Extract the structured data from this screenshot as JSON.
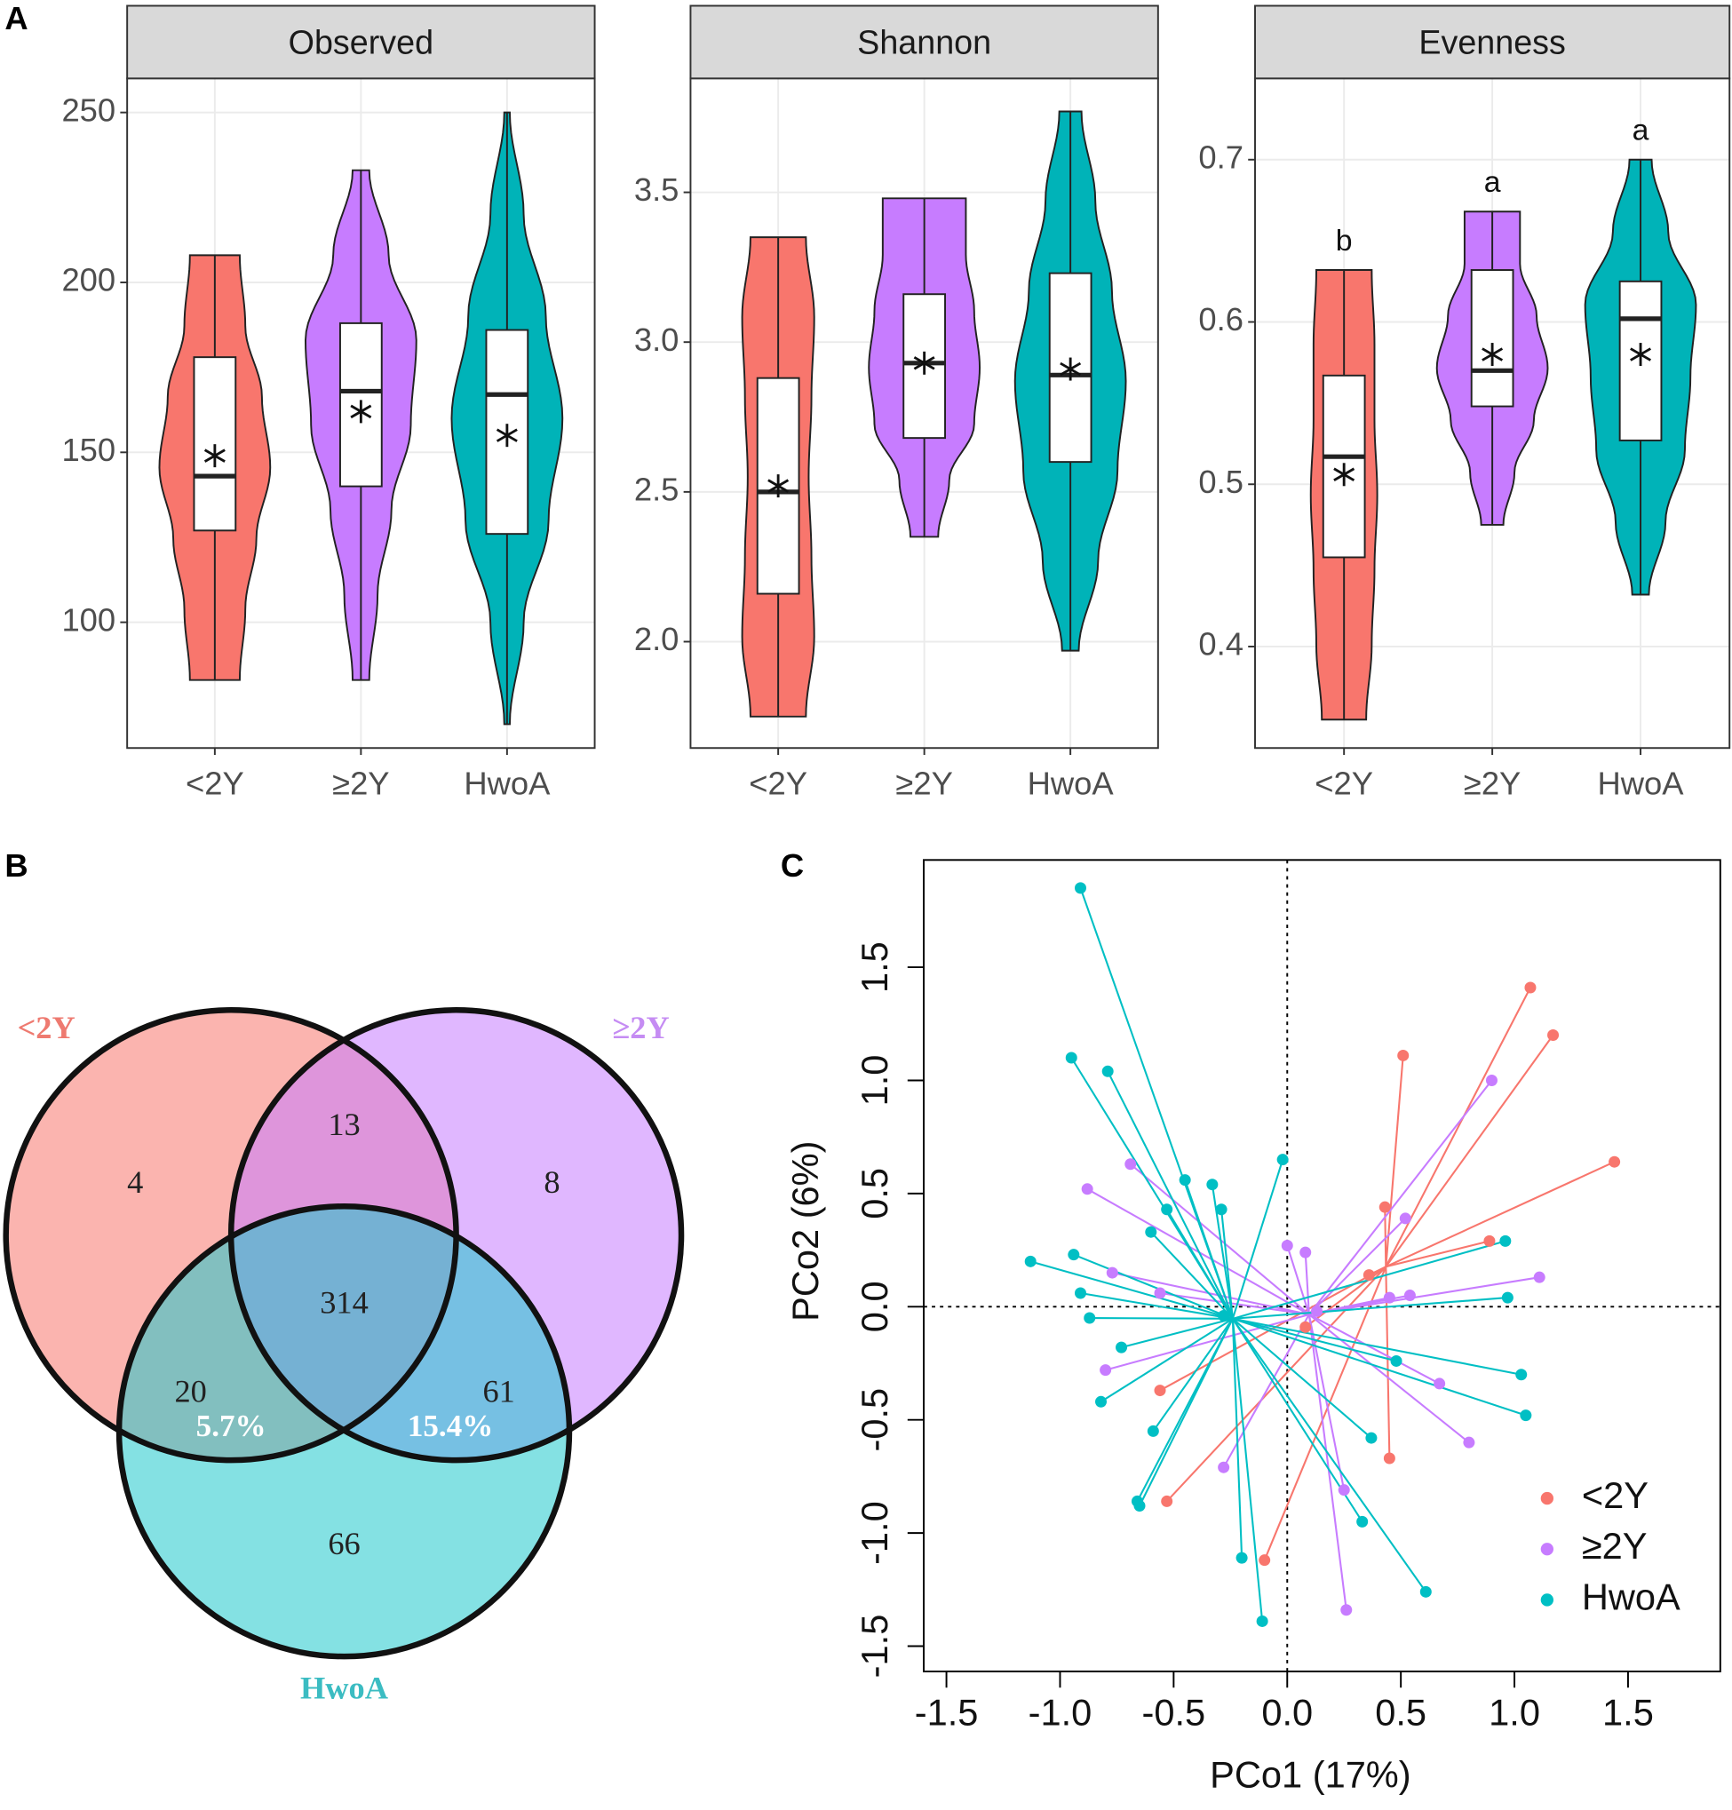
{
  "panel_labels": [
    "A",
    "B",
    "C"
  ],
  "chart_data": [
    {
      "type": "violin",
      "title": "Observed",
      "categories": [
        "<2Y",
        "≥2Y",
        "HwoA"
      ],
      "colors": [
        "#f8766d",
        "#c77cff",
        "#00b3b8"
      ],
      "ylim": [
        63,
        260
      ],
      "yticks": [
        100,
        150,
        200,
        250
      ],
      "grid": true,
      "min": [
        83,
        83,
        70
      ],
      "q1": [
        127,
        140,
        126
      ],
      "median": [
        143,
        168,
        167
      ],
      "q3": [
        178,
        188,
        186
      ],
      "max": [
        208,
        233,
        250
      ],
      "mean": [
        149,
        162,
        155
      ],
      "density": [
        [
          0.45,
          0.55,
          0.75,
          1.0,
          0.85,
          0.55,
          0.45
        ],
        [
          0.15,
          0.3,
          0.55,
          0.9,
          1.0,
          0.5,
          0.15
        ],
        [
          0.05,
          0.3,
          0.75,
          1.0,
          0.7,
          0.3,
          0.05
        ]
      ]
    },
    {
      "type": "violin",
      "title": "Shannon",
      "categories": [
        "<2Y",
        "≥2Y",
        "HwoA"
      ],
      "colors": [
        "#f8766d",
        "#c77cff",
        "#00b3b8"
      ],
      "ylim": [
        1.645,
        3.88
      ],
      "yticks": [
        {
          "value": 2.0,
          "label": "2.0"
        },
        2.5,
        {
          "value": 3.0,
          "label": "3.0"
        },
        3.5
      ],
      "grid": true,
      "min": [
        1.75,
        2.35,
        1.97
      ],
      "q1": [
        2.16,
        2.68,
        2.6
      ],
      "median": [
        2.5,
        2.93,
        2.89
      ],
      "q3": [
        2.88,
        3.16,
        3.23
      ],
      "max": [
        3.35,
        3.48,
        3.77
      ],
      "mean": [
        2.52,
        2.93,
        2.91
      ],
      "density": [
        [
          0.5,
          0.65,
          0.6,
          0.55,
          0.6,
          0.65,
          0.5
        ],
        [
          0.25,
          0.45,
          0.9,
          1.0,
          0.9,
          0.75,
          0.75
        ],
        [
          0.15,
          0.5,
          0.85,
          1.0,
          0.75,
          0.45,
          0.2
        ]
      ]
    },
    {
      "type": "violin",
      "title": "Evenness",
      "categories": [
        "<2Y",
        "≥2Y",
        "HwoA"
      ],
      "colors": [
        "#f8766d",
        "#c77cff",
        "#00b3b8"
      ],
      "ylim": [
        0.3375,
        0.75
      ],
      "yticks": [
        0.4,
        0.5,
        0.6,
        0.7
      ],
      "grid": true,
      "min": [
        0.355,
        0.475,
        0.432
      ],
      "q1": [
        0.455,
        0.548,
        0.527
      ],
      "median": [
        0.517,
        0.57,
        0.602
      ],
      "q3": [
        0.567,
        0.632,
        0.625
      ],
      "max": [
        0.632,
        0.668,
        0.7
      ],
      "mean": [
        0.506,
        0.58,
        0.58
      ],
      "density": [
        [
          0.4,
          0.5,
          0.55,
          0.6,
          0.55,
          0.55,
          0.5
        ],
        [
          0.2,
          0.4,
          0.75,
          1.0,
          0.8,
          0.5,
          0.5
        ],
        [
          0.15,
          0.45,
          0.8,
          0.9,
          1.0,
          0.5,
          0.2
        ]
      ],
      "letters": [
        "b",
        "a",
        "a"
      ]
    },
    {
      "type": "scatter",
      "xlabel": "PCo1 (17%)",
      "ylabel": "PCo2 (6%)",
      "xlim": [
        -1.6,
        1.906
      ],
      "ylim": [
        -1.612,
        1.974
      ],
      "xticks": [
        -1.5,
        {
          "value": -1.0,
          "label": "-1.0"
        },
        -0.5,
        {
          "value": 0.0,
          "label": "0.0"
        },
        0.5,
        {
          "value": 1.0,
          "label": "1.0"
        },
        1.5
      ],
      "yticks": [
        -1.5,
        {
          "value": -1.0,
          "label": "-1.0"
        },
        -0.5,
        {
          "value": 0.0,
          "label": "0.0"
        },
        0.5,
        {
          "value": 1.0,
          "label": "1.0"
        },
        1.5
      ],
      "legend": "bottomright",
      "series": [
        {
          "name": "<2Y",
          "color": "#f8766d",
          "x": [
            1.07,
            1.17,
            0.51,
            1.44,
            0.43,
            0.89,
            0.36,
            -0.56,
            0.45,
            -0.53,
            -0.1,
            0.08
          ],
          "y": [
            1.41,
            1.2,
            1.11,
            0.64,
            0.44,
            0.29,
            0.14,
            -0.37,
            -0.67,
            -0.86,
            -1.12,
            -0.09
          ]
        },
        {
          "name": "≥2Y",
          "color": "#c77cff",
          "x": [
            0.9,
            -0.69,
            -0.88,
            0.52,
            0.0,
            0.08,
            1.11,
            -0.77,
            0.54,
            -0.56,
            0.45,
            0.67,
            -0.8,
            0.8,
            -0.28,
            0.25,
            0.26,
            0.13
          ],
          "y": [
            1.0,
            0.63,
            0.52,
            0.39,
            0.27,
            0.24,
            0.13,
            0.15,
            0.05,
            0.06,
            0.04,
            -0.34,
            -0.28,
            -0.6,
            -0.71,
            -0.81,
            -1.34,
            -0.02
          ]
        },
        {
          "name": "HwoA",
          "color": "#00bfc4",
          "x": [
            -0.91,
            -0.95,
            -0.79,
            -0.02,
            -0.45,
            -0.33,
            -0.53,
            -0.6,
            -1.13,
            -0.94,
            -0.91,
            -0.87,
            -0.73,
            -0.82,
            -0.59,
            -0.66,
            -0.65,
            0.96,
            0.97,
            1.03,
            1.05,
            0.48,
            0.37,
            0.33,
            0.61,
            -0.2,
            -0.11,
            -0.28,
            -0.29
          ],
          "y": [
            1.85,
            1.1,
            1.04,
            0.65,
            0.56,
            0.54,
            0.43,
            0.33,
            0.2,
            0.23,
            0.06,
            -0.05,
            -0.18,
            -0.42,
            -0.55,
            -0.86,
            -0.88,
            0.29,
            0.04,
            -0.3,
            -0.48,
            -0.24,
            -0.58,
            -0.95,
            -1.26,
            -1.11,
            -1.39,
            -0.04,
            0.43
          ]
        }
      ]
    }
  ],
  "venn": {
    "sets": [
      {
        "name": "<2Y",
        "color": "#f8766d",
        "label_color": "#ee7a70"
      },
      {
        "name": "≥2Y",
        "color": "#c77cff",
        "label_color": "#c58cf3"
      },
      {
        "name": "HwoA",
        "color": "#1fc8cc",
        "label_color": "#3bbcc2"
      }
    ],
    "counts": [
      4,
      13,
      8,
      314,
      20,
      61,
      66
    ],
    "percents": [
      "5.7%",
      "15.4%"
    ]
  }
}
